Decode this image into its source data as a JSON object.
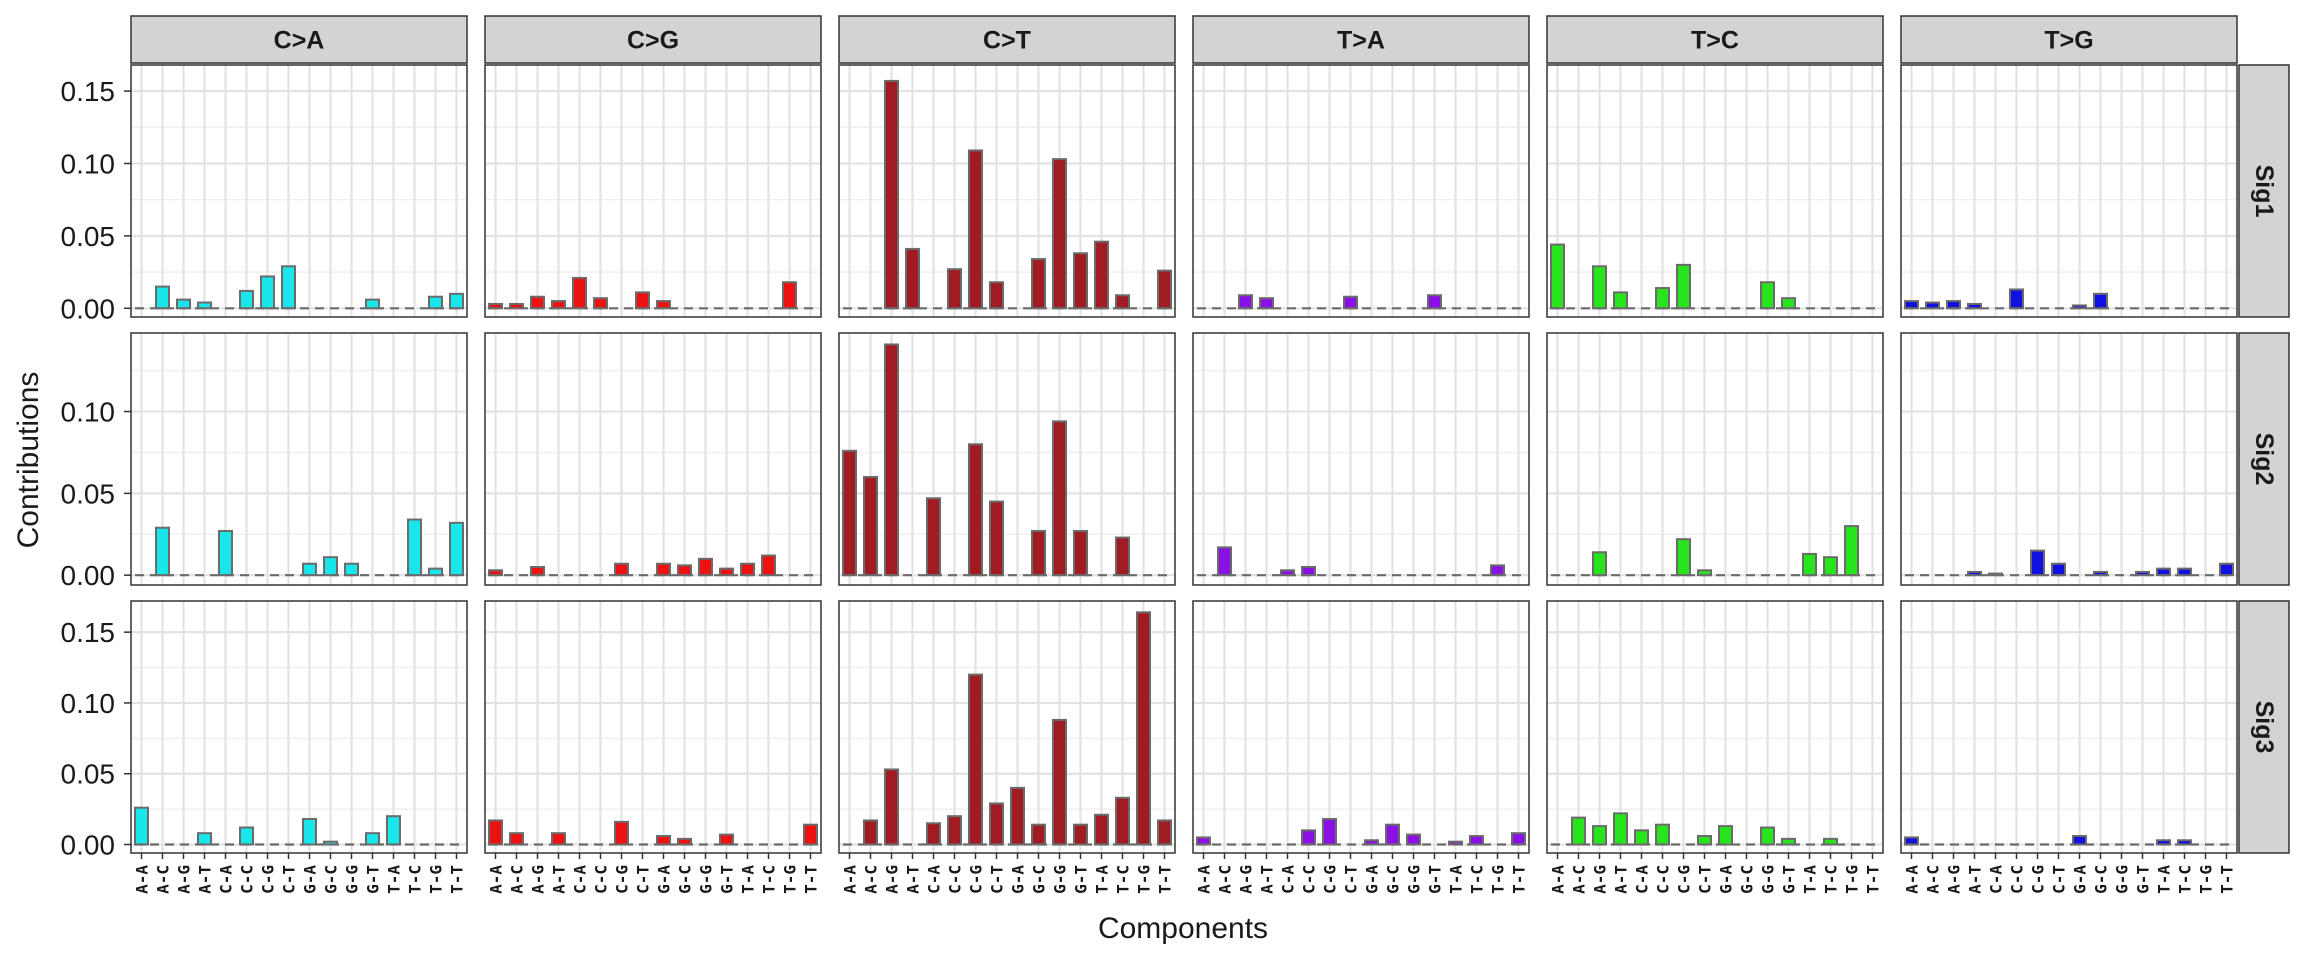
{
  "chart_data": {
    "type": "bar",
    "facet_columns": [
      "C>A",
      "C>G",
      "C>T",
      "T>A",
      "T>C",
      "T>G"
    ],
    "facet_rows": [
      "Sig1",
      "Sig2",
      "Sig3"
    ],
    "categories": [
      "A-A",
      "A-C",
      "A-G",
      "A-T",
      "C-A",
      "C-C",
      "C-G",
      "C-T",
      "G-A",
      "G-C",
      "G-G",
      "G-T",
      "T-A",
      "T-C",
      "T-G",
      "T-T"
    ],
    "xlabel": "Components",
    "ylabel": "Contributions",
    "grid": true,
    "row_axes": [
      {
        "ylim": [
          -0.006,
          0.168
        ],
        "ticks": [
          0.0,
          0.05,
          0.1,
          0.15
        ],
        "tick_labels": [
          "0.00",
          "0.05",
          "0.10",
          "0.15"
        ]
      },
      {
        "ylim": [
          -0.006,
          0.148
        ],
        "ticks": [
          0.0,
          0.05,
          0.1
        ],
        "tick_labels": [
          "0.00",
          "0.05",
          "0.10"
        ]
      },
      {
        "ylim": [
          -0.006,
          0.172
        ],
        "ticks": [
          0.0,
          0.05,
          0.1,
          0.15
        ],
        "tick_labels": [
          "0.00",
          "0.05",
          "0.10",
          "0.15"
        ]
      }
    ],
    "colors": {
      "C>A": "#19e6ea",
      "C>G": "#ee1111",
      "C>T": "#a11b22",
      "T>A": "#8a10e6",
      "T>C": "#27e41d",
      "T>G": "#1010e0"
    },
    "bar_outline": "#6b6b6b",
    "strip_fill": "#d3d3d3",
    "values": {
      "Sig1": {
        "C>A": [
          0,
          0.015,
          0.006,
          0.004,
          0,
          0.012,
          0.022,
          0.029,
          0,
          0,
          0,
          0.006,
          0,
          0,
          0.008,
          0.01
        ],
        "C>G": [
          0.003,
          0.003,
          0.008,
          0.005,
          0.021,
          0.007,
          0,
          0.011,
          0.005,
          0,
          0,
          0,
          0,
          0,
          0.018,
          0
        ],
        "C>T": [
          0,
          0,
          0.157,
          0.041,
          0,
          0.027,
          0.109,
          0.018,
          0,
          0.034,
          0.103,
          0.038,
          0.046,
          0.009,
          0,
          0.026
        ],
        "T>A": [
          0,
          0,
          0.009,
          0.007,
          0,
          0,
          0,
          0.008,
          0,
          0,
          0,
          0.009,
          0,
          0,
          0,
          0
        ],
        "T>C": [
          0.044,
          0,
          0.029,
          0.011,
          0,
          0.014,
          0.03,
          0,
          0,
          0,
          0.018,
          0.007,
          0,
          0,
          0,
          0
        ],
        "T>G": [
          0.005,
          0.004,
          0.005,
          0.003,
          0,
          0.013,
          0,
          0,
          0.002,
          0.01,
          0,
          0,
          0,
          0,
          0,
          0
        ]
      },
      "Sig2": {
        "C>A": [
          0,
          0.029,
          0,
          0,
          0.027,
          0,
          0,
          0,
          0.007,
          0.011,
          0.007,
          0,
          0,
          0.034,
          0.004,
          0.032
        ],
        "C>G": [
          0.003,
          0,
          0.005,
          0,
          0,
          0,
          0.007,
          0,
          0.007,
          0.006,
          0.01,
          0.004,
          0.007,
          0.012,
          0,
          0
        ],
        "C>T": [
          0.076,
          0.06,
          0.141,
          0,
          0.047,
          0,
          0.08,
          0.045,
          0,
          0.027,
          0.094,
          0.027,
          0,
          0.023,
          0,
          0
        ],
        "T>A": [
          0,
          0.017,
          0,
          0,
          0.003,
          0.005,
          0,
          0,
          0,
          0,
          0,
          0,
          0,
          0,
          0.006,
          0
        ],
        "T>C": [
          0,
          0,
          0.014,
          0,
          0,
          0,
          0.022,
          0.003,
          0,
          0,
          0,
          0,
          0.013,
          0.011,
          0.03,
          0
        ],
        "T>G": [
          0,
          0,
          0,
          0.002,
          0.001,
          0,
          0.015,
          0.007,
          0,
          0.002,
          0,
          0.002,
          0.004,
          0.004,
          0,
          0.007
        ]
      },
      "Sig3": {
        "C>A": [
          0.026,
          0,
          0,
          0.008,
          0,
          0.012,
          0,
          0,
          0.018,
          0.002,
          0,
          0.008,
          0.02,
          0,
          0,
          0
        ],
        "C>G": [
          0.017,
          0.008,
          0,
          0.008,
          0,
          0,
          0.016,
          0,
          0.006,
          0.004,
          0,
          0.007,
          0,
          0,
          0,
          0.014
        ],
        "C>T": [
          0,
          0.017,
          0.053,
          0,
          0.015,
          0.02,
          0.12,
          0.029,
          0.04,
          0.014,
          0.088,
          0.014,
          0.021,
          0.033,
          0.164,
          0.017
        ],
        "T>A": [
          0.005,
          0,
          0,
          0,
          0,
          0.01,
          0.018,
          0,
          0.003,
          0.014,
          0.007,
          0,
          0.002,
          0.006,
          0,
          0.008
        ],
        "T>C": [
          0,
          0.019,
          0.013,
          0.022,
          0.01,
          0.014,
          0,
          0.006,
          0.013,
          0,
          0.012,
          0.004,
          0,
          0.004,
          0,
          0
        ],
        "T>G": [
          0.005,
          0,
          0,
          0,
          0,
          0,
          0,
          0,
          0.006,
          0,
          0,
          0,
          0.003,
          0.003,
          0,
          0
        ]
      }
    }
  }
}
